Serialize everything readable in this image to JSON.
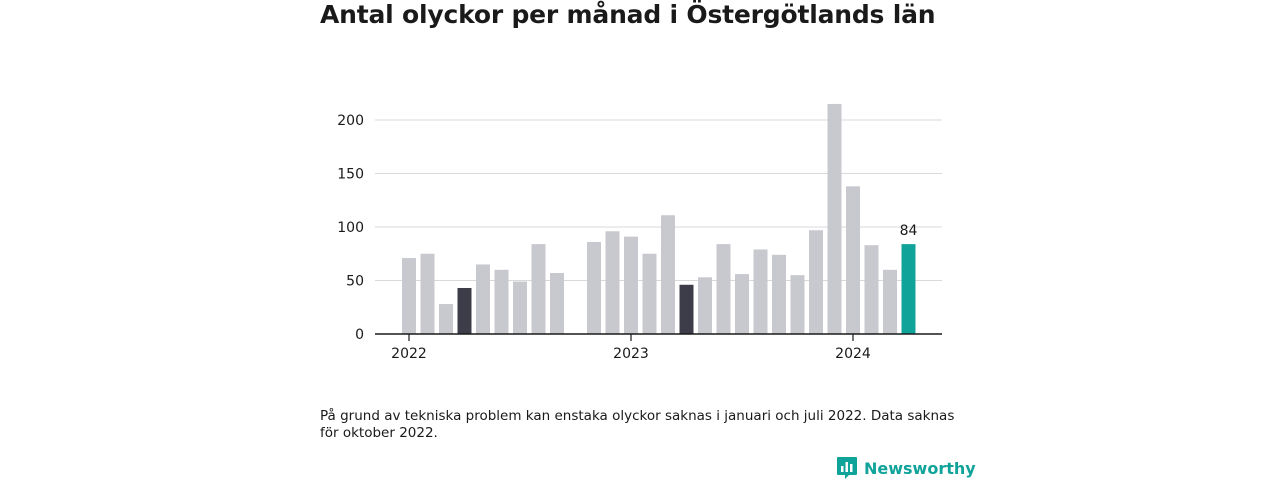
{
  "title": "Antal olyckor per månad i Östergötlands län",
  "note": "På grund av tekniska problem kan enstaka olyckor saknas i januari och juli 2022. Data saknas för oktober 2022.",
  "brand": {
    "name": "Newsworthy",
    "icon": "bar-chart-logo-icon"
  },
  "colors": {
    "default": "#c8c8cf",
    "highlight": "#3d3d4a",
    "latest": "#10a39a",
    "axis": "#1a1a1a",
    "grid": "#d9d9d9"
  },
  "chart_data": {
    "type": "bar",
    "title": "Antal olyckor per månad i Östergötlands län",
    "xlabel": "",
    "ylabel": "",
    "ylim": [
      0,
      220
    ],
    "yticks": [
      0,
      50,
      100,
      150,
      200
    ],
    "xticks": [
      {
        "label": "2022",
        "month": "2022-01"
      },
      {
        "label": "2023",
        "month": "2023-01"
      },
      {
        "label": "2024",
        "month": "2024-01"
      }
    ],
    "categories": [
      "2022-01",
      "2022-02",
      "2022-03",
      "2022-04",
      "2022-05",
      "2022-06",
      "2022-07",
      "2022-08",
      "2022-09",
      "2022-10",
      "2022-11",
      "2022-12",
      "2023-01",
      "2023-02",
      "2023-03",
      "2023-04",
      "2023-05",
      "2023-06",
      "2023-07",
      "2023-08",
      "2023-09",
      "2023-10",
      "2023-11",
      "2023-12",
      "2024-01",
      "2024-02",
      "2024-03",
      "2024-04"
    ],
    "values": [
      71,
      75,
      28,
      43,
      65,
      60,
      49,
      84,
      57,
      null,
      86,
      96,
      91,
      75,
      111,
      46,
      53,
      84,
      56,
      79,
      74,
      55,
      97,
      215,
      138,
      83,
      60,
      84
    ],
    "highlighted": [
      "2022-04",
      "2023-04"
    ],
    "latest": "2024-04",
    "data_labels": [
      {
        "month": "2024-04",
        "text": "84"
      }
    ],
    "grid": true,
    "legend": "none"
  }
}
